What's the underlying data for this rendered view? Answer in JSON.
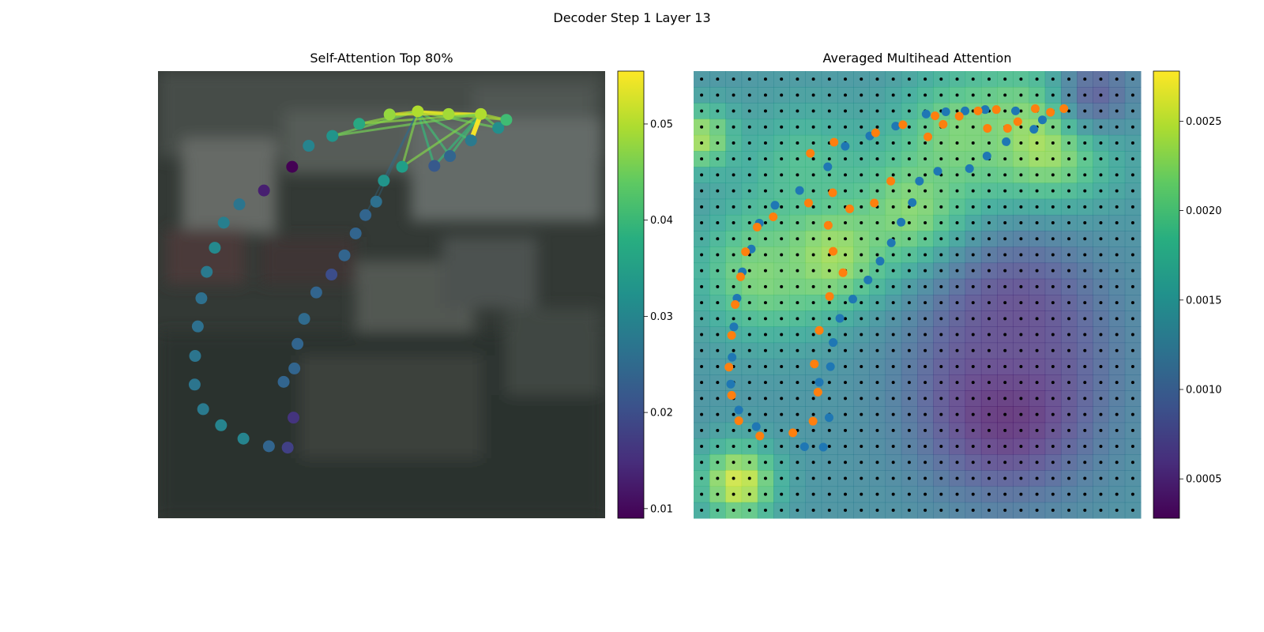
{
  "figure": {
    "suptitle": "Decoder Step 1 Layer 13"
  },
  "chart_data": [
    {
      "type": "scatter",
      "title": "Self-Attention Top 80%",
      "background": "blurred photo (dark grey street scene)",
      "colorbar": {
        "colormap": "viridis",
        "range": [
          0.009,
          0.0555
        ],
        "ticks": [
          "0.01",
          "0.02",
          "0.03",
          "0.04",
          "0.05"
        ],
        "tick_values": [
          0.01,
          0.02,
          0.03,
          0.04,
          0.05
        ]
      },
      "points": [
        {
          "x": 0.3,
          "y": 0.214,
          "v": 0.009
        },
        {
          "x": 0.237,
          "y": 0.267,
          "v": 0.013
        },
        {
          "x": 0.182,
          "y": 0.298,
          "v": 0.027
        },
        {
          "x": 0.147,
          "y": 0.339,
          "v": 0.029
        },
        {
          "x": 0.127,
          "y": 0.395,
          "v": 0.031
        },
        {
          "x": 0.109,
          "y": 0.449,
          "v": 0.028
        },
        {
          "x": 0.097,
          "y": 0.508,
          "v": 0.026
        },
        {
          "x": 0.089,
          "y": 0.571,
          "v": 0.026
        },
        {
          "x": 0.083,
          "y": 0.637,
          "v": 0.027
        },
        {
          "x": 0.082,
          "y": 0.701,
          "v": 0.027
        },
        {
          "x": 0.101,
          "y": 0.756,
          "v": 0.028
        },
        {
          "x": 0.141,
          "y": 0.792,
          "v": 0.03
        },
        {
          "x": 0.191,
          "y": 0.822,
          "v": 0.03
        },
        {
          "x": 0.248,
          "y": 0.839,
          "v": 0.024
        },
        {
          "x": 0.29,
          "y": 0.842,
          "v": 0.018
        },
        {
          "x": 0.303,
          "y": 0.775,
          "v": 0.016
        },
        {
          "x": 0.281,
          "y": 0.695,
          "v": 0.024
        },
        {
          "x": 0.305,
          "y": 0.665,
          "v": 0.024
        },
        {
          "x": 0.312,
          "y": 0.61,
          "v": 0.024
        },
        {
          "x": 0.327,
          "y": 0.554,
          "v": 0.025
        },
        {
          "x": 0.354,
          "y": 0.495,
          "v": 0.024
        },
        {
          "x": 0.388,
          "y": 0.455,
          "v": 0.02
        },
        {
          "x": 0.417,
          "y": 0.412,
          "v": 0.024
        },
        {
          "x": 0.442,
          "y": 0.363,
          "v": 0.024
        },
        {
          "x": 0.464,
          "y": 0.322,
          "v": 0.024
        },
        {
          "x": 0.488,
          "y": 0.292,
          "v": 0.026
        },
        {
          "x": 0.505,
          "y": 0.245,
          "v": 0.033
        },
        {
          "x": 0.546,
          "y": 0.214,
          "v": 0.035
        },
        {
          "x": 0.618,
          "y": 0.212,
          "v": 0.022
        },
        {
          "x": 0.653,
          "y": 0.19,
          "v": 0.024
        },
        {
          "x": 0.7,
          "y": 0.155,
          "v": 0.028
        },
        {
          "x": 0.761,
          "y": 0.127,
          "v": 0.032
        },
        {
          "x": 0.779,
          "y": 0.109,
          "v": 0.041
        },
        {
          "x": 0.722,
          "y": 0.096,
          "v": 0.05
        },
        {
          "x": 0.65,
          "y": 0.096,
          "v": 0.049
        },
        {
          "x": 0.581,
          "y": 0.09,
          "v": 0.05
        },
        {
          "x": 0.518,
          "y": 0.097,
          "v": 0.048
        },
        {
          "x": 0.45,
          "y": 0.118,
          "v": 0.037
        },
        {
          "x": 0.39,
          "y": 0.145,
          "v": 0.033
        },
        {
          "x": 0.337,
          "y": 0.167,
          "v": 0.03
        }
      ]
    },
    {
      "type": "heatmap",
      "title": "Averaged Multihead Attention",
      "colorbar": {
        "colormap": "viridis",
        "range": [
          0.00028,
          0.00278
        ],
        "ticks": [
          "0.0005",
          "0.0010",
          "0.0015",
          "0.0020",
          "0.0025"
        ],
        "tick_values": [
          0.0005,
          0.001,
          0.0015,
          0.002,
          0.0025
        ]
      },
      "grid": {
        "rows": 28,
        "cols": 28,
        "dot_color": "#000000"
      },
      "blob_centers": [
        {
          "x": 0.1,
          "y": 0.92,
          "v": 0.0026,
          "s": 0.06
        },
        {
          "x": 0.3,
          "y": 0.4,
          "v": 0.0026,
          "s": 0.09
        },
        {
          "x": 0.5,
          "y": 0.32,
          "v": 0.0024,
          "s": 0.1
        },
        {
          "x": 0.78,
          "y": 0.15,
          "v": 0.0026,
          "s": 0.11
        },
        {
          "x": 0.6,
          "y": 0.15,
          "v": 0.0022,
          "s": 0.1
        },
        {
          "x": 0.15,
          "y": 0.45,
          "v": 0.0022,
          "s": 0.1
        },
        {
          "x": 0.02,
          "y": 0.15,
          "v": 0.0024,
          "s": 0.05
        },
        {
          "x": 0.25,
          "y": 0.22,
          "v": 0.0019,
          "s": 0.1
        },
        {
          "x": 0.7,
          "y": 0.75,
          "v": 0.0003,
          "s": 0.14
        },
        {
          "x": 0.72,
          "y": 0.55,
          "v": 0.0006,
          "s": 0.14
        },
        {
          "x": 0.9,
          "y": 0.05,
          "v": 0.0008,
          "s": 0.07
        }
      ],
      "base_value": 0.00135,
      "series": [
        {
          "color": "#1f77b4",
          "points": [
            {
              "x": 0.52,
              "y": 0.096
            },
            {
              "x": 0.564,
              "y": 0.091
            },
            {
              "x": 0.607,
              "y": 0.089
            },
            {
              "x": 0.652,
              "y": 0.086
            },
            {
              "x": 0.72,
              "y": 0.089
            },
            {
              "x": 0.78,
              "y": 0.109
            },
            {
              "x": 0.761,
              "y": 0.13
            },
            {
              "x": 0.699,
              "y": 0.158
            },
            {
              "x": 0.656,
              "y": 0.19
            },
            {
              "x": 0.617,
              "y": 0.218
            },
            {
              "x": 0.546,
              "y": 0.224
            },
            {
              "x": 0.505,
              "y": 0.246
            },
            {
              "x": 0.489,
              "y": 0.294
            },
            {
              "x": 0.464,
              "y": 0.338
            },
            {
              "x": 0.442,
              "y": 0.384
            },
            {
              "x": 0.417,
              "y": 0.425
            },
            {
              "x": 0.39,
              "y": 0.467
            },
            {
              "x": 0.356,
              "y": 0.51
            },
            {
              "x": 0.327,
              "y": 0.553
            },
            {
              "x": 0.312,
              "y": 0.607
            },
            {
              "x": 0.306,
              "y": 0.661
            },
            {
              "x": 0.281,
              "y": 0.696
            },
            {
              "x": 0.303,
              "y": 0.775
            },
            {
              "x": 0.29,
              "y": 0.841
            },
            {
              "x": 0.248,
              "y": 0.84
            },
            {
              "x": 0.14,
              "y": 0.795
            },
            {
              "x": 0.101,
              "y": 0.758
            },
            {
              "x": 0.083,
              "y": 0.7
            },
            {
              "x": 0.086,
              "y": 0.64
            },
            {
              "x": 0.09,
              "y": 0.572
            },
            {
              "x": 0.097,
              "y": 0.508
            },
            {
              "x": 0.109,
              "y": 0.449
            },
            {
              "x": 0.129,
              "y": 0.398
            },
            {
              "x": 0.147,
              "y": 0.34
            },
            {
              "x": 0.182,
              "y": 0.3
            },
            {
              "x": 0.237,
              "y": 0.267
            },
            {
              "x": 0.3,
              "y": 0.214
            },
            {
              "x": 0.339,
              "y": 0.168
            },
            {
              "x": 0.394,
              "y": 0.145
            },
            {
              "x": 0.452,
              "y": 0.123
            }
          ]
        },
        {
          "color": "#ff7f0e",
          "points": [
            {
              "x": 0.828,
              "y": 0.084
            },
            {
              "x": 0.798,
              "y": 0.092
            },
            {
              "x": 0.764,
              "y": 0.084
            },
            {
              "x": 0.725,
              "y": 0.113
            },
            {
              "x": 0.677,
              "y": 0.086
            },
            {
              "x": 0.636,
              "y": 0.089
            },
            {
              "x": 0.594,
              "y": 0.101
            },
            {
              "x": 0.54,
              "y": 0.1
            },
            {
              "x": 0.468,
              "y": 0.12
            },
            {
              "x": 0.407,
              "y": 0.138
            },
            {
              "x": 0.314,
              "y": 0.159
            },
            {
              "x": 0.261,
              "y": 0.184
            },
            {
              "x": 0.524,
              "y": 0.147
            },
            {
              "x": 0.558,
              "y": 0.119
            },
            {
              "x": 0.657,
              "y": 0.128
            },
            {
              "x": 0.702,
              "y": 0.128
            },
            {
              "x": 0.441,
              "y": 0.246
            },
            {
              "x": 0.404,
              "y": 0.295
            },
            {
              "x": 0.349,
              "y": 0.308
            },
            {
              "x": 0.311,
              "y": 0.272
            },
            {
              "x": 0.257,
              "y": 0.295
            },
            {
              "x": 0.178,
              "y": 0.326
            },
            {
              "x": 0.142,
              "y": 0.349
            },
            {
              "x": 0.116,
              "y": 0.404
            },
            {
              "x": 0.105,
              "y": 0.46
            },
            {
              "x": 0.093,
              "y": 0.522
            },
            {
              "x": 0.085,
              "y": 0.591
            },
            {
              "x": 0.079,
              "y": 0.662
            },
            {
              "x": 0.085,
              "y": 0.725
            },
            {
              "x": 0.101,
              "y": 0.782
            },
            {
              "x": 0.148,
              "y": 0.816
            },
            {
              "x": 0.222,
              "y": 0.809
            },
            {
              "x": 0.267,
              "y": 0.783
            },
            {
              "x": 0.278,
              "y": 0.718
            },
            {
              "x": 0.27,
              "y": 0.655
            },
            {
              "x": 0.281,
              "y": 0.58
            },
            {
              "x": 0.304,
              "y": 0.504
            },
            {
              "x": 0.334,
              "y": 0.451
            },
            {
              "x": 0.312,
              "y": 0.403
            },
            {
              "x": 0.301,
              "y": 0.345
            }
          ]
        }
      ]
    }
  ]
}
